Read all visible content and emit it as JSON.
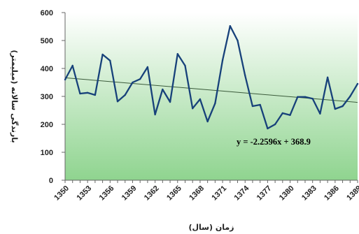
{
  "chart_data": {
    "type": "line",
    "title": "",
    "xlabel": "زمان (سال)",
    "ylabel": "بارندگی سالانه (میلیمتر)",
    "ylim": [
      0,
      600
    ],
    "yticks": [
      0,
      100,
      200,
      300,
      400,
      500,
      600
    ],
    "x": [
      1350,
      1351,
      1352,
      1353,
      1354,
      1355,
      1356,
      1357,
      1358,
      1359,
      1360,
      1361,
      1362,
      1363,
      1364,
      1365,
      1366,
      1367,
      1368,
      1369,
      1370,
      1371,
      1372,
      1373,
      1374,
      1375,
      1376,
      1377,
      1378,
      1379,
      1380,
      1381,
      1382,
      1383,
      1384,
      1385,
      1386,
      1387,
      1388,
      1389
    ],
    "xtick_labels": [
      "1350",
      "1353",
      "1356",
      "1359",
      "1362",
      "1365",
      "1368",
      "1371",
      "1374",
      "1377",
      "1380",
      "1383",
      "1386",
      "1389"
    ],
    "series": [
      {
        "values": [
          360,
          410,
          310,
          313,
          305,
          450,
          428,
          282,
          305,
          350,
          362,
          405,
          235,
          325,
          280,
          452,
          410,
          257,
          290,
          210,
          275,
          430,
          552,
          500,
          375,
          265,
          270,
          185,
          200,
          240,
          233,
          298,
          298,
          292,
          238,
          368,
          255,
          265,
          300,
          345
        ]
      }
    ],
    "trendline": {
      "slope": -2.2596,
      "intercept": 368.9,
      "label": "y = -2.2596x + 368.9"
    },
    "grid": false,
    "legend": "none",
    "colors": {
      "plot_area_top": "#ffffff",
      "plot_area_bottom": "#8fd48f",
      "line": "#17417a",
      "trendline": "#3a5a3a"
    }
  }
}
